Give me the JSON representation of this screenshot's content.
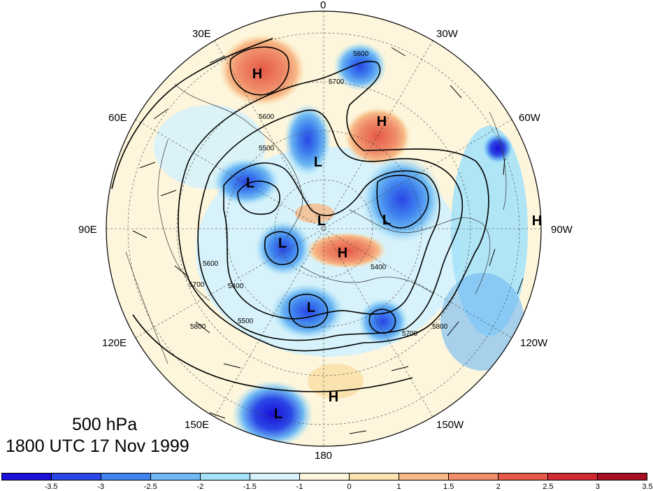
{
  "title": {
    "line1": "500 hPa",
    "line2": "1800 UTC 17 Nov 1999"
  },
  "lon_labels": {
    "0": "0",
    "30W": "30W",
    "60W": "60W",
    "90W": "90W",
    "120W": "120W",
    "150W": "150W",
    "180": "180",
    "150E": "150E",
    "120E": "120E",
    "90E": "90E",
    "60E": "60E",
    "30E": "30E"
  },
  "pressure_systems": [
    {
      "type": "H",
      "label": "H"
    },
    {
      "type": "H",
      "label": "H"
    },
    {
      "type": "H",
      "label": "H"
    },
    {
      "type": "H",
      "label": "H"
    },
    {
      "type": "H",
      "label": "H"
    },
    {
      "type": "L",
      "label": "L"
    },
    {
      "type": "L",
      "label": "L"
    },
    {
      "type": "L",
      "label": "L"
    },
    {
      "type": "L",
      "label": "L"
    },
    {
      "type": "L",
      "label": "L"
    },
    {
      "type": "L",
      "label": "L"
    },
    {
      "type": "L",
      "label": "L"
    }
  ],
  "contour_labels": [
    "5800",
    "5700",
    "5600",
    "5500",
    "5400",
    "5600",
    "5700",
    "5800",
    "5800",
    "5700",
    "5400",
    "5500"
  ],
  "colorbar": {
    "colors": [
      "#1a0fd6",
      "#2a46e6",
      "#3f83ee",
      "#6eb8f3",
      "#a7e3f8",
      "#d7f2fa",
      "#fdf6dc",
      "#fbe3b0",
      "#f7b987",
      "#f08d6a",
      "#e45947",
      "#cf2b33",
      "#a50f22"
    ],
    "ticks": [
      "-3.5",
      "-3",
      "-2.5",
      "-2",
      "-1.5",
      "-1",
      "0",
      "1",
      "1.5",
      "2",
      "2.5",
      "3",
      "3.5"
    ]
  }
}
